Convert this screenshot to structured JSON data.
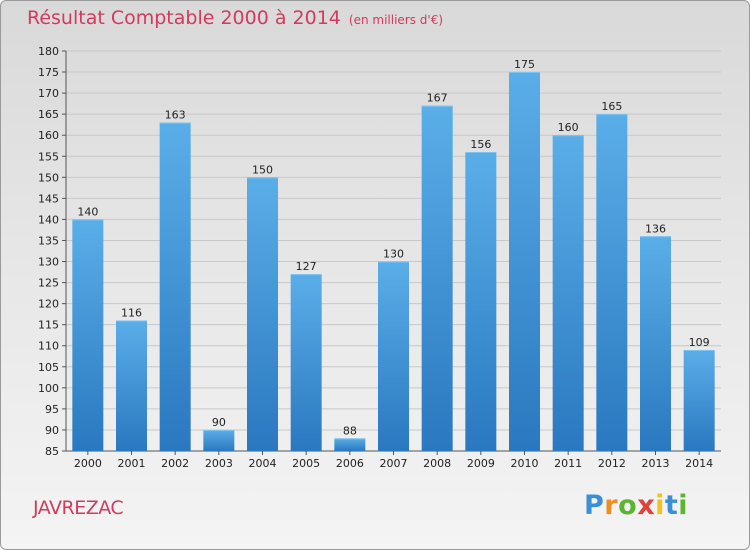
{
  "title": "Résultat Comptable 2000 à 2014",
  "subtitle": "(en milliers d'€)",
  "commune": "JAVREZAC",
  "logo": {
    "letters": [
      "P",
      "r",
      "o",
      "x",
      "i",
      "t",
      "i"
    ],
    "colors": [
      "#3a8fd6",
      "#f28c1e",
      "#5bb531",
      "#e0413a",
      "#f2c21e",
      "#3a8fd6",
      "#5bb531"
    ]
  },
  "chart_data": {
    "type": "bar",
    "categories": [
      "2000",
      "2001",
      "2002",
      "2003",
      "2004",
      "2005",
      "2006",
      "2007",
      "2008",
      "2009",
      "2010",
      "2011",
      "2012",
      "2013",
      "2014"
    ],
    "values": [
      140,
      116,
      163,
      90,
      150,
      127,
      88,
      130,
      167,
      156,
      175,
      160,
      165,
      136,
      109
    ],
    "ylim": [
      85,
      180
    ],
    "yticks": [
      85,
      90,
      95,
      100,
      105,
      110,
      115,
      120,
      125,
      130,
      135,
      140,
      145,
      150,
      155,
      160,
      165,
      170,
      175,
      180
    ],
    "grid": true,
    "bar_color": "#4a9fe0"
  }
}
